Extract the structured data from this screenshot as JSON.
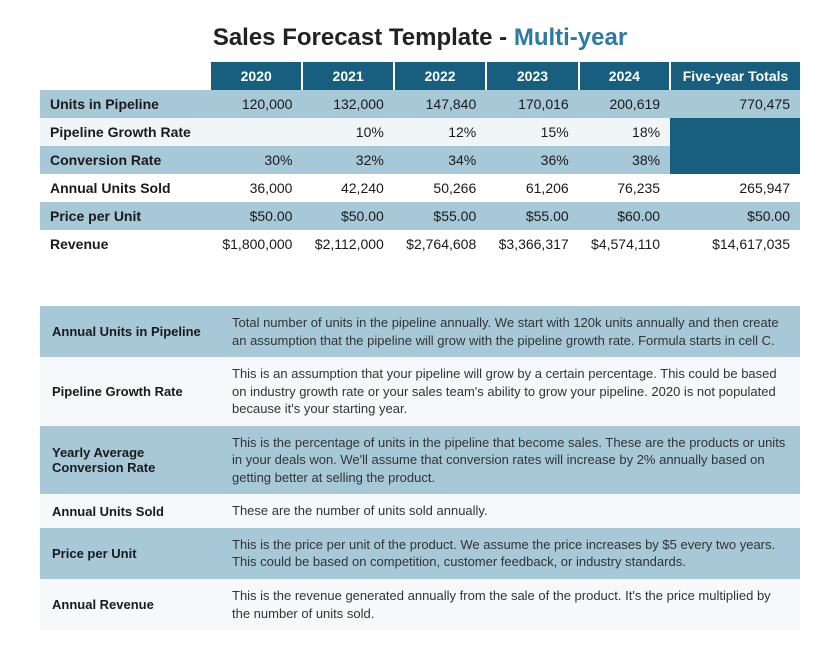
{
  "title": {
    "prefix": "Sales Forecast Template - ",
    "accent": "Multi-year"
  },
  "colors": {
    "header_bg": "#185f7f",
    "header_fg": "#ffffff",
    "band_blue": "#a7c8d7",
    "band_light": "#f0f5f8",
    "band_white": "#ffffff",
    "accent_text": "#2e7aa3",
    "text": "#1a1a1a"
  },
  "forecast": {
    "columns": [
      "2020",
      "2021",
      "2022",
      "2023",
      "2024",
      "Five-year Totals"
    ],
    "rows": [
      {
        "label": "Units in Pipeline",
        "band": "blue",
        "cells": [
          "120,000",
          "132,000",
          "147,840",
          "170,016",
          "200,619",
          "770,475"
        ]
      },
      {
        "label": "Pipeline Growth Rate",
        "band": "light",
        "cells": [
          "",
          "10%",
          "12%",
          "15%",
          "18%",
          null
        ]
      },
      {
        "label": "Conversion Rate",
        "band": "blue",
        "cells": [
          "30%",
          "32%",
          "34%",
          "36%",
          "38%",
          null
        ]
      },
      {
        "label": "Annual Units Sold",
        "band": "white",
        "cells": [
          "36,000",
          "42,240",
          "50,266",
          "61,206",
          "76,235",
          "265,947"
        ]
      },
      {
        "label": "Price per Unit",
        "band": "blue",
        "cells": [
          "$50.00",
          "$50.00",
          "$55.00",
          "$55.00",
          "$60.00",
          "$50.00"
        ]
      },
      {
        "label": "Revenue",
        "band": "white",
        "cells": [
          "$1,800,000",
          "$2,112,000",
          "$2,764,608",
          "$3,366,317",
          "$4,574,110",
          "$14,617,035"
        ]
      }
    ]
  },
  "definitions": [
    {
      "term": "Annual Units in Pipeline",
      "desc": "Total number of units in the pipeline annually. We start with 120k units annually and then create an assumption that the pipeline will grow with the pipeline growth rate. Formula starts in cell C.",
      "band": "blue"
    },
    {
      "term": "Pipeline Growth Rate",
      "desc": "This is an assumption that your pipeline will grow by a certain percentage. This could be based on industry growth rate or your sales team's ability to grow your pipeline. 2020 is not populated because it's your starting year.",
      "band": "light"
    },
    {
      "term": "Yearly Average Conversion Rate",
      "desc": "This is the percentage of units in the pipeline that become sales. These are the products or units in your deals won. We'll assume that conversion rates will increase by 2% annually based on getting better at selling the product.",
      "band": "blue"
    },
    {
      "term": "Annual Units Sold",
      "desc": "These are the number of units sold annually.",
      "band": "light"
    },
    {
      "term": "Price per Unit",
      "desc": "This is the price per unit of the product. We assume the price increases by $5 every two years. This could be based on competition, customer feedback, or industry standards.",
      "band": "blue"
    },
    {
      "term": "Annual Revenue",
      "desc": "This is the revenue generated annually from the sale of the product. It's the price multiplied by the number of units sold.",
      "band": "light"
    }
  ]
}
